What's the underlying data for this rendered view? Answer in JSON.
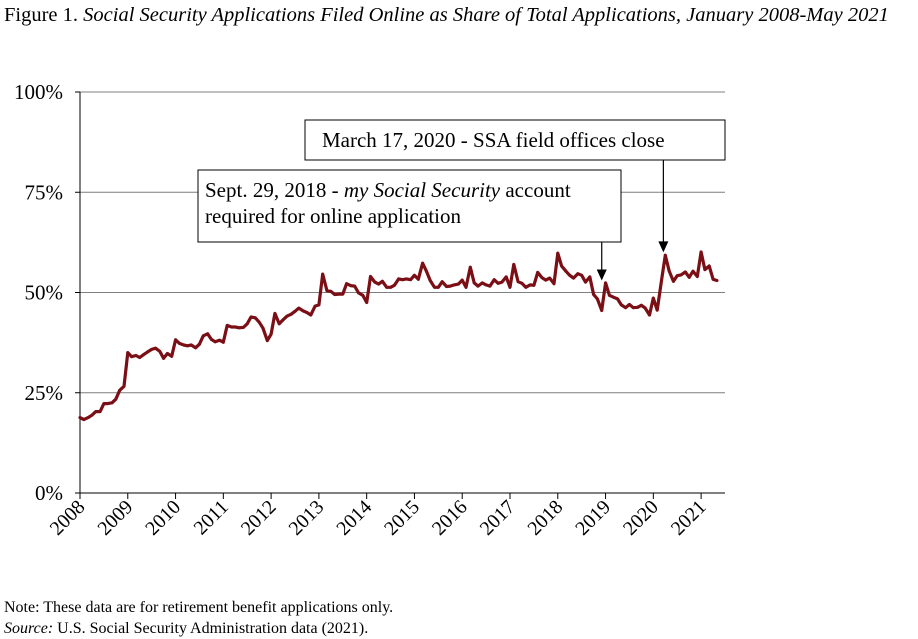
{
  "figure": {
    "prefix": "Figure 1.",
    "title": "Social Security Applications Filed Online as Share of Total Applications, January 2008-May 2021"
  },
  "note": "Note: These data are for retirement benefit applications only.",
  "source": {
    "label": "Source:",
    "text": "U.S. Social Security Administration data (2021)."
  },
  "colors": {
    "line": "#7b0f16",
    "grid": "#7f7f7f",
    "axis": "#000000"
  },
  "chart_data": {
    "type": "line",
    "title": "",
    "xlabel": "",
    "ylabel": "",
    "grid": true,
    "legend": "none",
    "ylim": [
      0,
      100
    ],
    "xlim": [
      2008.0,
      2021.5
    ],
    "y_ticks": [
      0,
      25,
      50,
      75,
      100
    ],
    "y_tick_labels": [
      "0%",
      "25%",
      "50%",
      "75%",
      "100%"
    ],
    "x_ticks": [
      2008,
      2009,
      2010,
      2011,
      2012,
      2013,
      2014,
      2015,
      2016,
      2017,
      2018,
      2019,
      2020,
      2021
    ],
    "x_tick_labels": [
      "2008",
      "2009",
      "2010",
      "2011",
      "2012",
      "2013",
      "2014",
      "2015",
      "2016",
      "2017",
      "2018",
      "2019",
      "2020",
      "2021"
    ],
    "series": [
      {
        "name": "",
        "points": [
          [
            2008.0,
            18.8
          ],
          [
            2008.08,
            18.3
          ],
          [
            2008.17,
            18.8
          ],
          [
            2008.25,
            19.4
          ],
          [
            2008.33,
            20.3
          ],
          [
            2008.42,
            20.3
          ],
          [
            2008.5,
            22.3
          ],
          [
            2008.58,
            22.3
          ],
          [
            2008.67,
            22.5
          ],
          [
            2008.75,
            23.4
          ],
          [
            2008.83,
            25.6
          ],
          [
            2008.92,
            26.6
          ],
          [
            2009.0,
            35.0
          ],
          [
            2009.08,
            34.0
          ],
          [
            2009.17,
            34.3
          ],
          [
            2009.25,
            33.8
          ],
          [
            2009.33,
            34.5
          ],
          [
            2009.42,
            35.2
          ],
          [
            2009.5,
            35.8
          ],
          [
            2009.58,
            36.1
          ],
          [
            2009.67,
            35.3
          ],
          [
            2009.75,
            33.6
          ],
          [
            2009.83,
            34.8
          ],
          [
            2009.92,
            34.1
          ],
          [
            2010.0,
            38.2
          ],
          [
            2010.08,
            37.3
          ],
          [
            2010.17,
            36.9
          ],
          [
            2010.25,
            36.7
          ],
          [
            2010.33,
            36.9
          ],
          [
            2010.42,
            36.2
          ],
          [
            2010.5,
            37.1
          ],
          [
            2010.58,
            39.2
          ],
          [
            2010.67,
            39.7
          ],
          [
            2010.75,
            38.3
          ],
          [
            2010.83,
            37.7
          ],
          [
            2010.92,
            38.1
          ],
          [
            2011.0,
            37.6
          ],
          [
            2011.08,
            41.8
          ],
          [
            2011.17,
            41.4
          ],
          [
            2011.25,
            41.4
          ],
          [
            2011.33,
            41.2
          ],
          [
            2011.42,
            41.3
          ],
          [
            2011.5,
            42.2
          ],
          [
            2011.58,
            43.9
          ],
          [
            2011.67,
            43.7
          ],
          [
            2011.75,
            42.6
          ],
          [
            2011.83,
            41.1
          ],
          [
            2011.92,
            38.0
          ],
          [
            2012.0,
            39.6
          ],
          [
            2012.08,
            44.8
          ],
          [
            2012.17,
            42.2
          ],
          [
            2012.25,
            43.2
          ],
          [
            2012.33,
            44.1
          ],
          [
            2012.42,
            44.6
          ],
          [
            2012.5,
            45.3
          ],
          [
            2012.58,
            46.1
          ],
          [
            2012.67,
            45.4
          ],
          [
            2012.75,
            45.0
          ],
          [
            2012.83,
            44.4
          ],
          [
            2012.92,
            46.6
          ],
          [
            2013.0,
            46.9
          ],
          [
            2013.08,
            54.6
          ],
          [
            2013.17,
            50.4
          ],
          [
            2013.25,
            50.3
          ],
          [
            2013.33,
            49.5
          ],
          [
            2013.42,
            49.6
          ],
          [
            2013.5,
            49.6
          ],
          [
            2013.58,
            52.2
          ],
          [
            2013.67,
            51.7
          ],
          [
            2013.75,
            51.6
          ],
          [
            2013.83,
            49.9
          ],
          [
            2013.92,
            49.3
          ],
          [
            2014.0,
            47.5
          ],
          [
            2014.08,
            54.0
          ],
          [
            2014.17,
            52.6
          ],
          [
            2014.25,
            52.1
          ],
          [
            2014.33,
            52.8
          ],
          [
            2014.42,
            51.3
          ],
          [
            2014.5,
            51.3
          ],
          [
            2014.58,
            51.8
          ],
          [
            2014.67,
            53.4
          ],
          [
            2014.75,
            53.2
          ],
          [
            2014.83,
            53.4
          ],
          [
            2014.92,
            53.2
          ],
          [
            2015.0,
            54.3
          ],
          [
            2015.08,
            53.3
          ],
          [
            2015.17,
            57.3
          ],
          [
            2015.25,
            55.3
          ],
          [
            2015.33,
            53.0
          ],
          [
            2015.42,
            51.3
          ],
          [
            2015.5,
            51.3
          ],
          [
            2015.58,
            52.7
          ],
          [
            2015.67,
            51.5
          ],
          [
            2015.75,
            51.6
          ],
          [
            2015.83,
            51.9
          ],
          [
            2015.92,
            52.1
          ],
          [
            2016.0,
            53.1
          ],
          [
            2016.08,
            51.3
          ],
          [
            2016.17,
            56.3
          ],
          [
            2016.25,
            52.4
          ],
          [
            2016.33,
            51.6
          ],
          [
            2016.42,
            52.4
          ],
          [
            2016.5,
            51.9
          ],
          [
            2016.58,
            51.6
          ],
          [
            2016.67,
            53.2
          ],
          [
            2016.75,
            52.3
          ],
          [
            2016.83,
            52.6
          ],
          [
            2016.92,
            53.9
          ],
          [
            2017.0,
            51.3
          ],
          [
            2017.08,
            57.0
          ],
          [
            2017.17,
            52.7
          ],
          [
            2017.25,
            52.3
          ],
          [
            2017.33,
            51.3
          ],
          [
            2017.42,
            51.9
          ],
          [
            2017.5,
            51.8
          ],
          [
            2017.58,
            55.0
          ],
          [
            2017.67,
            53.7
          ],
          [
            2017.75,
            53.1
          ],
          [
            2017.83,
            53.6
          ],
          [
            2017.92,
            52.2
          ],
          [
            2018.0,
            59.8
          ],
          [
            2018.08,
            56.6
          ],
          [
            2018.17,
            55.3
          ],
          [
            2018.25,
            54.3
          ],
          [
            2018.33,
            53.6
          ],
          [
            2018.42,
            54.7
          ],
          [
            2018.5,
            54.3
          ],
          [
            2018.58,
            52.6
          ],
          [
            2018.67,
            53.9
          ],
          [
            2018.75,
            49.5
          ],
          [
            2018.83,
            48.4
          ],
          [
            2018.92,
            45.5
          ],
          [
            2019.0,
            52.4
          ],
          [
            2019.08,
            49.3
          ],
          [
            2019.17,
            48.8
          ],
          [
            2019.25,
            48.4
          ],
          [
            2019.33,
            46.9
          ],
          [
            2019.42,
            46.2
          ],
          [
            2019.5,
            47.0
          ],
          [
            2019.58,
            46.2
          ],
          [
            2019.67,
            46.3
          ],
          [
            2019.75,
            46.8
          ],
          [
            2019.83,
            46.1
          ],
          [
            2019.92,
            44.4
          ],
          [
            2020.0,
            48.6
          ],
          [
            2020.08,
            45.6
          ],
          [
            2020.17,
            53.0
          ],
          [
            2020.25,
            59.3
          ],
          [
            2020.33,
            55.4
          ],
          [
            2020.42,
            52.8
          ],
          [
            2020.5,
            54.2
          ],
          [
            2020.58,
            54.4
          ],
          [
            2020.67,
            55.1
          ],
          [
            2020.75,
            53.8
          ],
          [
            2020.83,
            55.3
          ],
          [
            2020.92,
            54.0
          ],
          [
            2021.0,
            60.1
          ],
          [
            2021.08,
            55.7
          ],
          [
            2021.17,
            56.6
          ],
          [
            2021.25,
            53.3
          ],
          [
            2021.33,
            53.0
          ]
        ]
      }
    ],
    "annotations": [
      {
        "id": "sept-2018",
        "lines": [
          [
            {
              "text": "Sept. 29, 2018 - ",
              "italic": false
            },
            {
              "text": "my Social Security",
              "italic": true
            },
            {
              "text": " account",
              "italic": false
            }
          ],
          [
            {
              "text": "required for online application",
              "italic": false
            }
          ]
        ],
        "arrow_target": [
          2018.92,
          53.0
        ]
      },
      {
        "id": "march-2020",
        "lines": [
          [
            {
              "text": "March 17, 2020 - SSA field offices close",
              "italic": false
            }
          ]
        ],
        "arrow_target": [
          2020.21,
          60.0
        ]
      }
    ]
  }
}
